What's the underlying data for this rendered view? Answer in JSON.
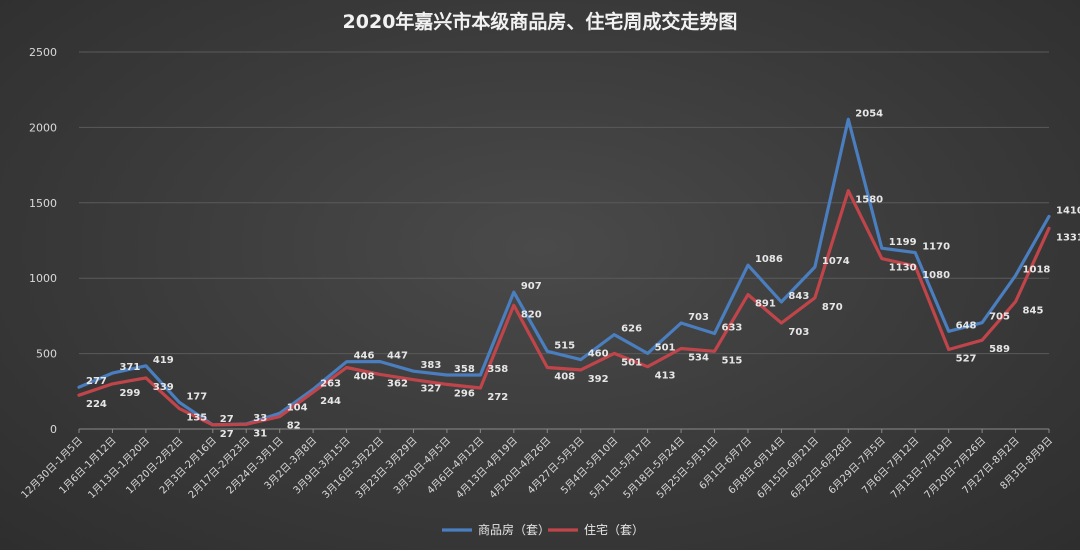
{
  "chart_data": {
    "type": "line",
    "title": "2020年嘉兴市本级商品房、住宅周成交走势图",
    "xlabel": "",
    "ylabel": "",
    "ylim": [
      0,
      2500
    ],
    "yticks": [
      0,
      500,
      1000,
      1500,
      2000,
      2500
    ],
    "grid": true,
    "legend": "bottom",
    "categories": [
      "12月30日-1月5日",
      "1月6日-1月12日",
      "1月13日-1月20日",
      "1月20日-2月2日",
      "2月3日-2月16日",
      "2月17日-2月23日",
      "2月24日-3月1日",
      "3月2日-3月8日",
      "3月9日-3月15日",
      "3月16日-3月22日",
      "3月23日-3月29日",
      "3月30日-4月5日",
      "4月6日-4月12日",
      "4月13日-4月19日",
      "4月20日-4月26日",
      "4月27日-5月3日",
      "5月4日-5月10日",
      "5月11日-5月17日",
      "5月18日-5月24日",
      "5月25日-5月31日",
      "6月1日-6月7日",
      "6月8日-6月14日",
      "6月15日-6月21日",
      "6月22日-6月28日",
      "6月29日-7月5日",
      "7月6日-7月12日",
      "7月13日-7月19日",
      "7月20日-7月26日",
      "7月27日-8月2日",
      "8月3日-8月9日"
    ],
    "series": [
      {
        "name": "商品房（套）",
        "color": "#4a7ebf",
        "values": [
          277,
          371,
          419,
          177,
          27,
          33,
          104,
          263,
          446,
          447,
          383,
          358,
          358,
          907,
          515,
          460,
          626,
          501,
          703,
          633,
          1086,
          843,
          1074,
          2054,
          1199,
          1170,
          648,
          705,
          1018,
          1410
        ]
      },
      {
        "name": "住宅（套）",
        "color": "#c0454a",
        "values": [
          224,
          299,
          339,
          135,
          27,
          31,
          82,
          244,
          408,
          362,
          327,
          296,
          272,
          820,
          408,
          392,
          501,
          413,
          534,
          515,
          891,
          703,
          870,
          1580,
          1130,
          1080,
          527,
          589,
          845,
          1331
        ]
      }
    ]
  }
}
